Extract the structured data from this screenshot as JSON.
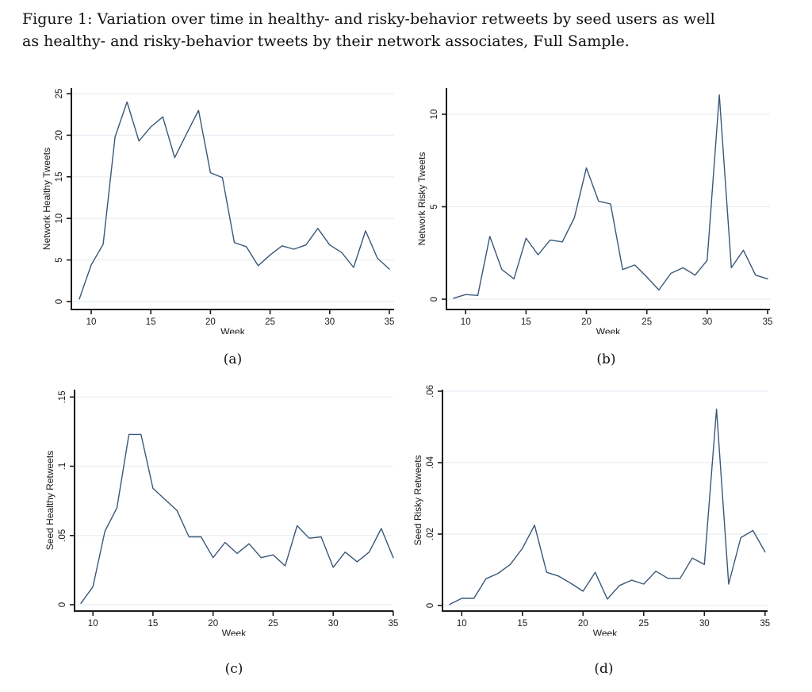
{
  "figure": {
    "caption_line1": "Figure 1: Variation over time in healthy- and risky-behavior retweets by seed users as well",
    "caption_line2": "as healthy- and risky-behavior tweets by their network associates, Full Sample.",
    "full_caption": "Figure 1: Variation over time in healthy- and risky-behavior retweets by seed users as well as healthy- and risky-behavior tweets by their network associates, Full Sample."
  },
  "colors": {
    "line": "#3a5878",
    "grid": "#e7eef4",
    "axis": "#1a1a1a",
    "text": "#1a1a1a",
    "background": "#ffffff"
  },
  "chart_data": [
    {
      "id": "a",
      "type": "line",
      "panel_label": "(a)",
      "xlabel": "Week",
      "ylabel": "Network Healthy Tweets",
      "x": [
        9,
        10,
        11,
        12,
        13,
        14,
        15,
        16,
        17,
        18,
        19,
        20,
        21,
        22,
        23,
        24,
        25,
        26,
        27,
        28,
        29,
        30,
        31,
        32,
        33,
        34,
        35
      ],
      "values": [
        0.3,
        4.4,
        6.9,
        19.8,
        24,
        19.3,
        21,
        22.2,
        17.3,
        20.2,
        23,
        15.5,
        14.9,
        7.1,
        6.6,
        4.3,
        5.6,
        6.7,
        6.3,
        6.8,
        8.8,
        6.8,
        5.9,
        4.1,
        8.5,
        5.2,
        3.9
      ],
      "xticks": [
        10,
        15,
        20,
        25,
        30,
        35
      ],
      "yticks": [
        0,
        5,
        10,
        15,
        20,
        25
      ],
      "ytick_labels": [
        "0",
        "5",
        "10",
        "15",
        "20",
        "25"
      ],
      "xlim": [
        8.5,
        35.5
      ],
      "ylim": [
        0,
        25
      ],
      "grid": true,
      "legend": "none"
    },
    {
      "id": "b",
      "type": "line",
      "panel_label": "(b)",
      "xlabel": "Week",
      "ylabel": "Network Risky Tweets",
      "x": [
        9,
        10,
        11,
        12,
        13,
        14,
        15,
        16,
        17,
        18,
        19,
        20,
        21,
        22,
        23,
        24,
        25,
        26,
        27,
        28,
        29,
        30,
        31,
        32,
        33,
        34,
        35
      ],
      "values": [
        0.05,
        0.25,
        0.2,
        3.4,
        1.6,
        1.1,
        3.3,
        2.4,
        3.2,
        3.1,
        4.4,
        7.1,
        5.3,
        5.15,
        1.6,
        1.85,
        1.2,
        0.5,
        1.4,
        1.7,
        1.3,
        2.1,
        11.05,
        1.7,
        2.65,
        1.3,
        1.1
      ],
      "xticks": [
        10,
        15,
        20,
        25,
        30,
        35
      ],
      "yticks": [
        0,
        5,
        10
      ],
      "ytick_labels": [
        "0",
        "5",
        "10"
      ],
      "xlim": [
        8.5,
        35.5
      ],
      "ylim": [
        0,
        11.1
      ],
      "grid": true,
      "legend": "none"
    },
    {
      "id": "c",
      "type": "line",
      "panel_label": "(c)",
      "xlabel": "Week",
      "ylabel": "Seed Healthy Retweets",
      "x": [
        9,
        10,
        11,
        12,
        13,
        14,
        15,
        16,
        17,
        18,
        19,
        20,
        21,
        22,
        23,
        24,
        25,
        26,
        27,
        28,
        29,
        30,
        31,
        32,
        33,
        34,
        35
      ],
      "values": [
        0.001,
        0.013,
        0.053,
        0.07,
        0.123,
        0.123,
        0.084,
        0.076,
        0.068,
        0.049,
        0.049,
        0.034,
        0.045,
        0.037,
        0.044,
        0.034,
        0.036,
        0.028,
        0.057,
        0.048,
        0.049,
        0.027,
        0.038,
        0.031,
        0.038,
        0.055,
        0.034
      ],
      "xticks": [
        10,
        15,
        20,
        25,
        30,
        35
      ],
      "yticks": [
        0,
        0.05,
        0.1,
        0.15
      ],
      "ytick_labels": [
        "0",
        ".05",
        ".1",
        ".15"
      ],
      "xlim": [
        8.5,
        35.5
      ],
      "ylim": [
        0,
        0.15
      ],
      "grid": true,
      "legend": "none"
    },
    {
      "id": "d",
      "type": "line",
      "panel_label": "(d)",
      "xlabel": "Week",
      "ylabel": "Seed Risky Retweets",
      "x": [
        9,
        10,
        11,
        12,
        13,
        14,
        15,
        16,
        17,
        18,
        19,
        20,
        21,
        22,
        23,
        24,
        25,
        26,
        27,
        28,
        29,
        30,
        31,
        32,
        33,
        34,
        35
      ],
      "values": [
        0.0003,
        0.002,
        0.002,
        0.0075,
        0.009,
        0.0115,
        0.016,
        0.0225,
        0.0093,
        0.0082,
        0.0062,
        0.004,
        0.0093,
        0.0018,
        0.0056,
        0.0071,
        0.006,
        0.0096,
        0.0076,
        0.0076,
        0.0133,
        0.0115,
        0.055,
        0.006,
        0.019,
        0.021,
        0.015
      ],
      "xticks": [
        10,
        15,
        20,
        25,
        30,
        35
      ],
      "yticks": [
        0,
        0.02,
        0.04,
        0.06
      ],
      "ytick_labels": [
        "0",
        ".02",
        ".04",
        ".06"
      ],
      "xlim": [
        8.5,
        35.5
      ],
      "ylim": [
        0,
        0.06
      ],
      "grid": true,
      "legend": "none"
    }
  ]
}
